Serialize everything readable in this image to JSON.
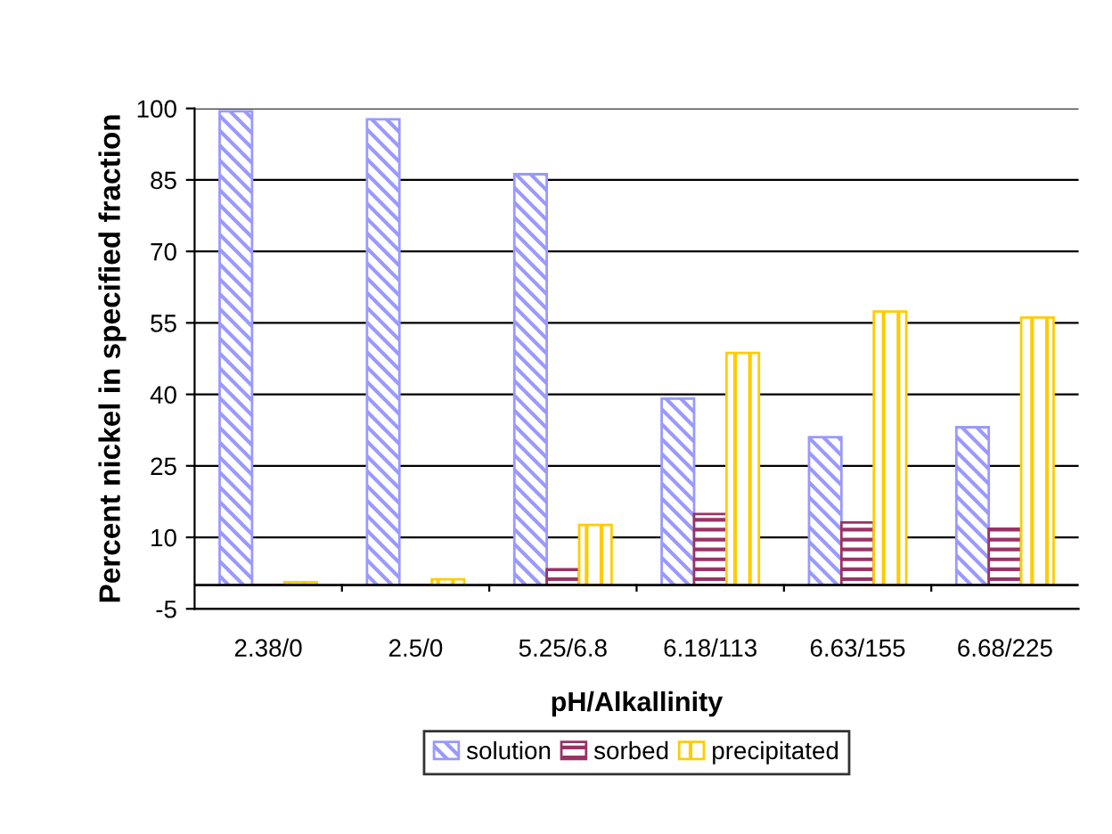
{
  "chart_data": {
    "type": "bar",
    "xlabel": "pH/Alkallinity",
    "ylabel": "Percent nickel in specified fraction",
    "categories": [
      "2.38/0",
      "2.5/0",
      "5.25/6.8",
      "6.18/113",
      "6.63/155",
      "6.68/225"
    ],
    "series": [
      {
        "name": "solution",
        "color": "#9999ff",
        "values": [
          99.4,
          97.7,
          86.2,
          39.1,
          31.0,
          33.1
        ]
      },
      {
        "name": "sorbed",
        "color": "#993366",
        "values": [
          0,
          0,
          3.3,
          14.9,
          13.1,
          11.8
        ]
      },
      {
        "name": "precipitated",
        "color": "#ffcc00",
        "values": [
          0.6,
          1.2,
          12.6,
          48.7,
          57.4,
          56.1
        ]
      }
    ],
    "ylim": [
      -5,
      100
    ],
    "yticks": [
      -5,
      10,
      25,
      40,
      55,
      70,
      85,
      100
    ],
    "grid": "y",
    "legend": "bottom"
  }
}
